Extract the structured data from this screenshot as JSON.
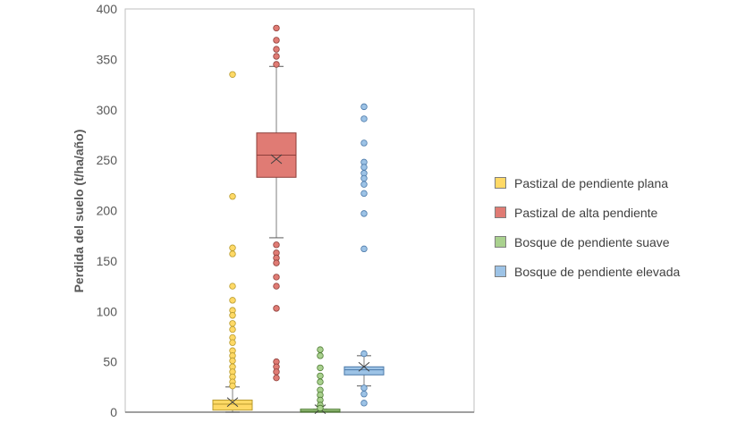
{
  "chart_data": {
    "type": "boxplot",
    "title": "",
    "xlabel": "",
    "ylabel": "Perdida del suelo (t/ha/año)",
    "ylim": [
      0,
      400
    ],
    "yticks": [
      0,
      50,
      100,
      150,
      200,
      250,
      300,
      350,
      400
    ],
    "grid": false,
    "legend_position": "right",
    "series": [
      {
        "name": "Pastizal de pendiente plana",
        "color": "#FFD966",
        "edge": "#B89B2E",
        "min": 0,
        "q1": 2,
        "median": 8,
        "q3": 12,
        "max": 25,
        "mean": 10,
        "outliers": [
          335,
          214,
          163,
          157,
          125,
          111,
          101,
          96,
          88,
          82,
          74,
          69,
          61,
          56,
          51,
          45,
          40,
          35,
          30,
          26
        ]
      },
      {
        "name": "Pastizal de alta pendiente",
        "color": "#E07B74",
        "edge": "#8E3F3A",
        "min": 173,
        "q1": 233,
        "median": 255,
        "q3": 277,
        "max": 343,
        "mean": 251,
        "outliers": [
          381,
          369,
          360,
          353,
          345,
          166,
          158,
          153,
          148,
          134,
          125,
          103,
          50,
          45,
          40,
          34
        ]
      },
      {
        "name": "Bosque de pendiente suave",
        "color": "#A9D18E",
        "edge": "#4E7A33",
        "min": 0,
        "q1": 0,
        "median": 1,
        "q3": 3,
        "max": 3,
        "mean": 3,
        "outliers": [
          62,
          56,
          44,
          36,
          30,
          22,
          17,
          12,
          7,
          4
        ]
      },
      {
        "name": "Bosque de pendiente elevada",
        "color": "#9DC3E6",
        "edge": "#4A78A8",
        "min": 26,
        "q1": 37,
        "median": 42,
        "q3": 45,
        "max": 56,
        "mean": 45,
        "outliers": [
          303,
          291,
          267,
          248,
          243,
          237,
          232,
          226,
          217,
          197,
          162,
          58,
          24,
          18,
          9
        ]
      }
    ]
  }
}
